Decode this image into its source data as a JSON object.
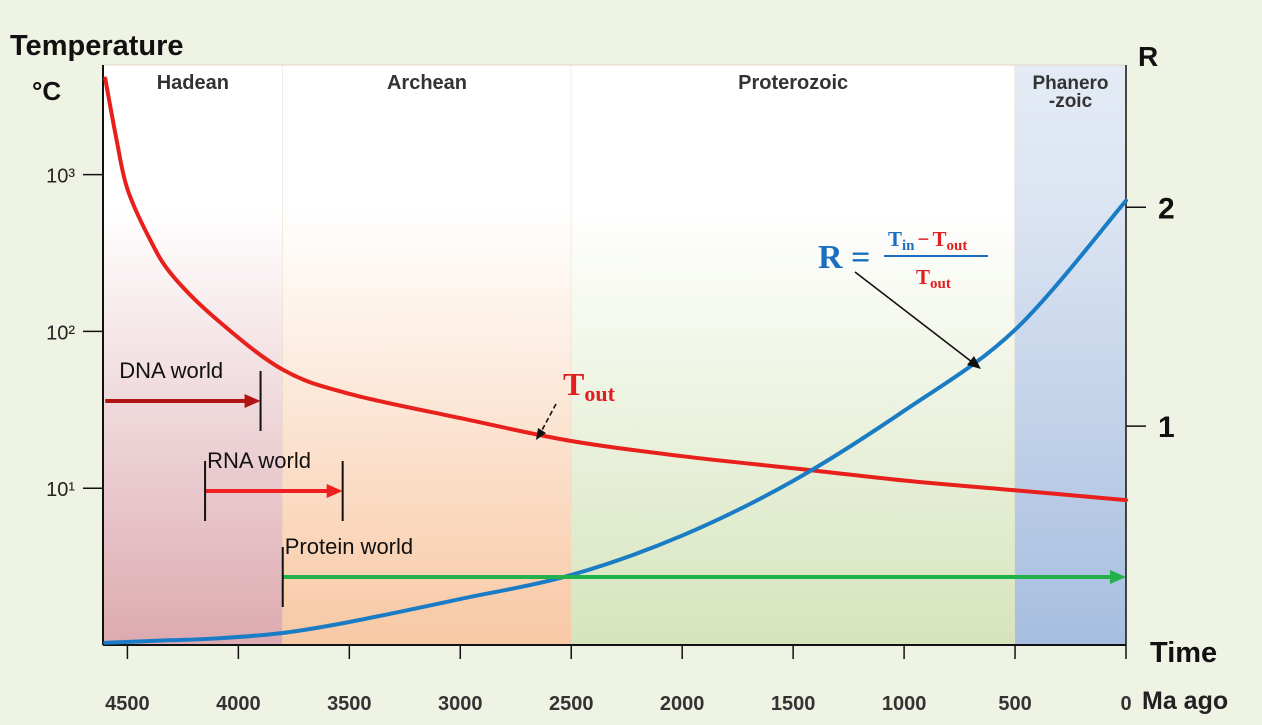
{
  "chart_data": {
    "type": "line",
    "y_label": "Temperature",
    "y_unit": "°C",
    "y2_label": "R",
    "x_label": "Time",
    "x_unit": "Ma ago",
    "xlim": [
      4610,
      0
    ],
    "xticks": [
      4500,
      4000,
      3500,
      3000,
      2500,
      2000,
      1500,
      1000,
      500,
      0
    ],
    "ylim": [
      1,
      5000
    ],
    "log_y": true,
    "yticks": [
      {
        "value": 10,
        "label": "10¹"
      },
      {
        "value": 100,
        "label": "10²"
      },
      {
        "value": 1000,
        "label": "10³"
      }
    ],
    "y2lim": [
      0,
      2.65
    ],
    "y2ticks": [
      1,
      2
    ],
    "x": [
      4600,
      4550,
      4500,
      4400,
      4300,
      4100,
      3800,
      3500,
      3000,
      2500,
      2000,
      1500,
      1000,
      500,
      0
    ],
    "series": [
      {
        "name": "Tout",
        "color": "#e8201c",
        "axis": "y",
        "values": [
          4100,
          1700,
          810,
          390,
          230,
          120,
          57,
          40,
          28,
          20,
          16,
          13.4,
          11.2,
          9.7,
          8.4
        ]
      },
      {
        "name": "R",
        "color": "#1a7cc4",
        "axis": "y2",
        "values": [
          0.01,
          0.012,
          0.014,
          0.018,
          0.022,
          0.03,
          0.055,
          0.105,
          0.21,
          0.32,
          0.5,
          0.75,
          1.07,
          1.44,
          2.03
        ]
      }
    ],
    "eras": [
      {
        "name": "Hadean",
        "start": 4610,
        "end": 3800,
        "color": "#dcaab0"
      },
      {
        "name": "Archean",
        "start": 3800,
        "end": 2500,
        "color": "#f8c8a4"
      },
      {
        "name": "Proterozoic",
        "start": 2500,
        "end": 500,
        "color": "#d6e4bc"
      },
      {
        "name": [
          "Phanero",
          "-zoic"
        ],
        "start": 500,
        "end": 0,
        "color": "#a6bedf"
      }
    ],
    "periods": [
      {
        "label": "DNA world",
        "start": 4600,
        "end": 3900,
        "color": "#b01414"
      },
      {
        "label": "RNA world",
        "start": 4150,
        "end": 3530,
        "color": "#ee2020"
      },
      {
        "label": "Protein world",
        "start": 3800,
        "end": 0,
        "color": "#22b04a"
      }
    ],
    "annotations": {
      "tout": {
        "text": "T",
        "sub": "out"
      },
      "r_formula": {
        "lhs": "R =",
        "num_t1": "T",
        "num_s1": "in",
        "num_op": "−",
        "num_t2": "T",
        "num_s2": "out",
        "den_t": "T",
        "den_s": "out"
      }
    }
  }
}
